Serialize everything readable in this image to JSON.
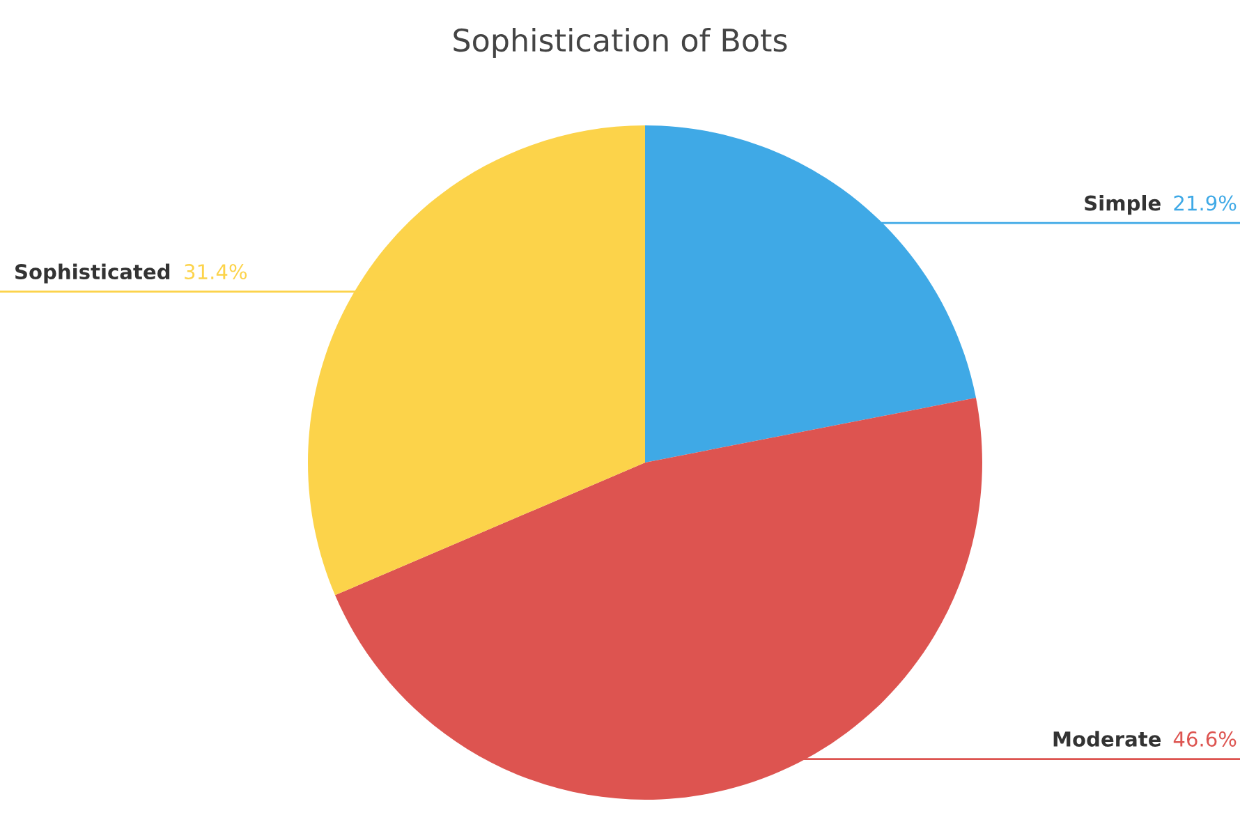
{
  "chart_data": {
    "type": "pie",
    "title": "Sophistication of Bots",
    "categories": [
      "Simple",
      "Moderate",
      "Sophisticated"
    ],
    "values": [
      21.9,
      46.6,
      31.4
    ],
    "colors": [
      "#3fa9e6",
      "#dd5450",
      "#fcd34a"
    ],
    "value_labels": [
      "21.9%",
      "46.6%",
      "31.4%"
    ]
  }
}
